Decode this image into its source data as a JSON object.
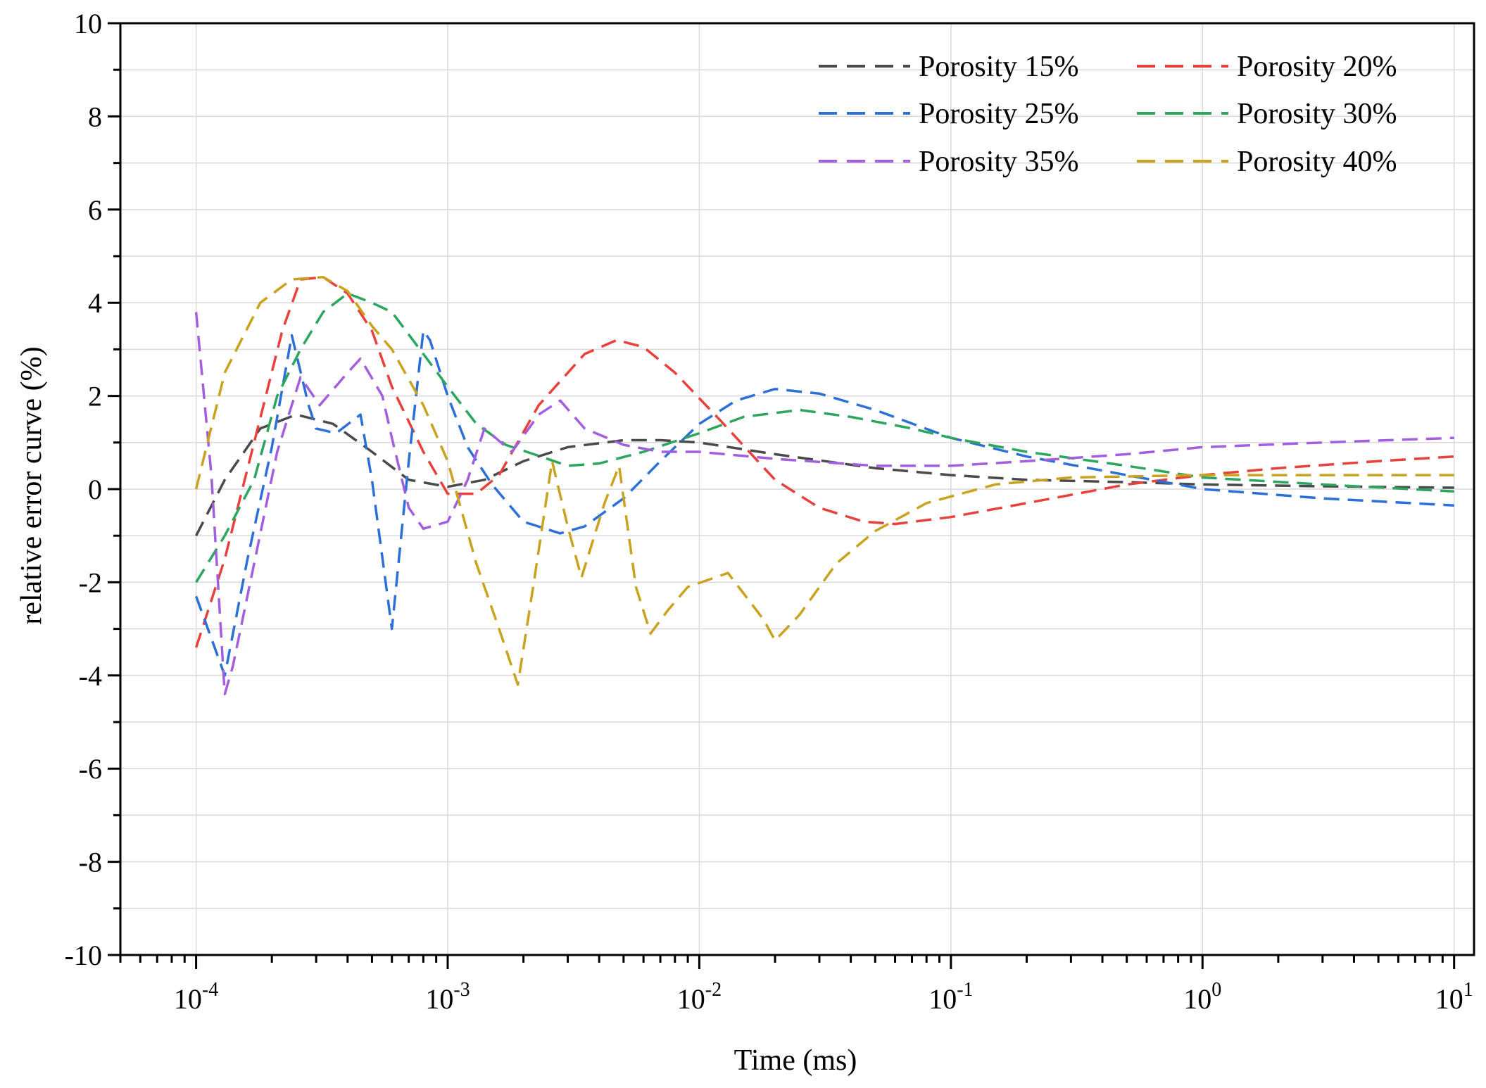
{
  "chart_data": {
    "type": "line",
    "title": "",
    "xlabel": "Time (ms)",
    "ylabel": "relative error curve (%)",
    "xscale": "log",
    "xlim": [
      5e-05,
      12
    ],
    "ylim": [
      -10,
      10
    ],
    "xticks": [
      {
        "value": 0.0001,
        "base": "10",
        "exp": "-4"
      },
      {
        "value": 0.001,
        "base": "10",
        "exp": "-3"
      },
      {
        "value": 0.01,
        "base": "10",
        "exp": "-2"
      },
      {
        "value": 0.1,
        "base": "10",
        "exp": "-1"
      },
      {
        "value": 1,
        "base": "10",
        "exp": "0"
      },
      {
        "value": 10,
        "base": "10",
        "exp": "1"
      }
    ],
    "yticks": [
      {
        "value": -10,
        "label": "-10"
      },
      {
        "value": -8,
        "label": "-8"
      },
      {
        "value": -6,
        "label": "-6"
      },
      {
        "value": -4,
        "label": "-4"
      },
      {
        "value": -2,
        "label": "-2"
      },
      {
        "value": 0,
        "label": "0"
      },
      {
        "value": 2,
        "label": "2"
      },
      {
        "value": 4,
        "label": "4"
      },
      {
        "value": 6,
        "label": "6"
      },
      {
        "value": 8,
        "label": "8"
      },
      {
        "value": 10,
        "label": "10"
      }
    ],
    "grid": true,
    "legend_position": "top-right",
    "series": [
      {
        "name": "Porosity 15%",
        "color": "#4a4a4a",
        "points": [
          [
            0.0001,
            -1.0
          ],
          [
            0.00013,
            0.2
          ],
          [
            0.00018,
            1.3
          ],
          [
            0.00025,
            1.6
          ],
          [
            0.00035,
            1.4
          ],
          [
            0.0005,
            0.8
          ],
          [
            0.0007,
            0.2
          ],
          [
            0.001,
            0.05
          ],
          [
            0.0014,
            0.2
          ],
          [
            0.002,
            0.6
          ],
          [
            0.003,
            0.9
          ],
          [
            0.005,
            1.05
          ],
          [
            0.007,
            1.05
          ],
          [
            0.01,
            1.0
          ],
          [
            0.02,
            0.75
          ],
          [
            0.05,
            0.45
          ],
          [
            0.1,
            0.3
          ],
          [
            0.2,
            0.2
          ],
          [
            0.5,
            0.15
          ],
          [
            1,
            0.1
          ],
          [
            3,
            0.06
          ],
          [
            10,
            0.03
          ]
        ]
      },
      {
        "name": "Porosity 20%",
        "color": "#e8413c",
        "points": [
          [
            0.0001,
            -3.4
          ],
          [
            0.00013,
            -1.5
          ],
          [
            0.00017,
            1.0
          ],
          [
            0.00022,
            3.4
          ],
          [
            0.00026,
            4.5
          ],
          [
            0.00032,
            4.55
          ],
          [
            0.0004,
            4.2
          ],
          [
            0.0005,
            3.4
          ],
          [
            0.0006,
            2.2
          ],
          [
            0.0008,
            0.8
          ],
          [
            0.001,
            -0.1
          ],
          [
            0.0013,
            -0.1
          ],
          [
            0.0016,
            0.3
          ],
          [
            0.0023,
            1.8
          ],
          [
            0.0035,
            2.9
          ],
          [
            0.0047,
            3.2
          ],
          [
            0.006,
            3.05
          ],
          [
            0.008,
            2.5
          ],
          [
            0.012,
            1.5
          ],
          [
            0.02,
            0.2
          ],
          [
            0.03,
            -0.4
          ],
          [
            0.045,
            -0.7
          ],
          [
            0.06,
            -0.75
          ],
          [
            0.1,
            -0.6
          ],
          [
            0.2,
            -0.3
          ],
          [
            0.5,
            0.1
          ],
          [
            1,
            0.3
          ],
          [
            2,
            0.45
          ],
          [
            5,
            0.6
          ],
          [
            10,
            0.7
          ]
        ]
      },
      {
        "name": "Porosity 25%",
        "color": "#2b6fd8",
        "points": [
          [
            0.0001,
            -2.3
          ],
          [
            0.00013,
            -4.0
          ],
          [
            0.00016,
            -1.5
          ],
          [
            0.0002,
            0.9
          ],
          [
            0.00024,
            3.3
          ],
          [
            0.00028,
            1.8
          ],
          [
            0.0003,
            1.3
          ],
          [
            0.00036,
            1.2
          ],
          [
            0.00045,
            1.6
          ],
          [
            0.0005,
            0.2
          ],
          [
            0.0006,
            -3.0
          ],
          [
            0.0007,
            0.6
          ],
          [
            0.0008,
            3.4
          ],
          [
            0.00085,
            3.2
          ],
          [
            0.001,
            2.0
          ],
          [
            0.0012,
            0.9
          ],
          [
            0.0015,
            0.1
          ],
          [
            0.002,
            -0.7
          ],
          [
            0.0028,
            -0.95
          ],
          [
            0.0035,
            -0.8
          ],
          [
            0.005,
            -0.2
          ],
          [
            0.007,
            0.6
          ],
          [
            0.01,
            1.4
          ],
          [
            0.014,
            1.9
          ],
          [
            0.02,
            2.15
          ],
          [
            0.03,
            2.05
          ],
          [
            0.05,
            1.7
          ],
          [
            0.1,
            1.1
          ],
          [
            0.2,
            0.7
          ],
          [
            0.5,
            0.3
          ],
          [
            1,
            0.0
          ],
          [
            3,
            -0.2
          ],
          [
            10,
            -0.35
          ]
        ]
      },
      {
        "name": "Porosity 30%",
        "color": "#2ca55e",
        "points": [
          [
            0.0001,
            -2.0
          ],
          [
            0.00013,
            -1.0
          ],
          [
            0.00017,
            0.2
          ],
          [
            0.00021,
            2.0
          ],
          [
            0.00026,
            3.0
          ],
          [
            0.00032,
            3.8
          ],
          [
            0.0004,
            4.2
          ],
          [
            0.0005,
            4.0
          ],
          [
            0.0006,
            3.8
          ],
          [
            0.0008,
            2.9
          ],
          [
            0.001,
            2.2
          ],
          [
            0.0013,
            1.4
          ],
          [
            0.0017,
            0.95
          ],
          [
            0.0022,
            0.75
          ],
          [
            0.003,
            0.5
          ],
          [
            0.004,
            0.55
          ],
          [
            0.006,
            0.8
          ],
          [
            0.01,
            1.2
          ],
          [
            0.015,
            1.55
          ],
          [
            0.025,
            1.7
          ],
          [
            0.04,
            1.55
          ],
          [
            0.07,
            1.3
          ],
          [
            0.1,
            1.1
          ],
          [
            0.2,
            0.8
          ],
          [
            0.5,
            0.5
          ],
          [
            1,
            0.25
          ],
          [
            3,
            0.1
          ],
          [
            10,
            -0.05
          ]
        ]
      },
      {
        "name": "Porosity 35%",
        "color": "#a35ee0",
        "points": [
          [
            0.0001,
            3.8
          ],
          [
            0.000115,
            0.3
          ],
          [
            0.00013,
            -4.4
          ],
          [
            0.00014,
            -3.8
          ],
          [
            0.00017,
            -1.6
          ],
          [
            0.00021,
            0.8
          ],
          [
            0.00026,
            2.4
          ],
          [
            0.00031,
            1.8
          ],
          [
            0.0004,
            2.5
          ],
          [
            0.00045,
            2.8
          ],
          [
            0.00055,
            2.0
          ],
          [
            0.0006,
            1.1
          ],
          [
            0.0007,
            -0.4
          ],
          [
            0.0008,
            -0.85
          ],
          [
            0.001,
            -0.7
          ],
          [
            0.0012,
            0.2
          ],
          [
            0.0014,
            1.3
          ],
          [
            0.0018,
            0.8
          ],
          [
            0.0023,
            1.6
          ],
          [
            0.0028,
            1.9
          ],
          [
            0.0035,
            1.3
          ],
          [
            0.005,
            0.95
          ],
          [
            0.007,
            0.8
          ],
          [
            0.01,
            0.8
          ],
          [
            0.02,
            0.65
          ],
          [
            0.05,
            0.5
          ],
          [
            0.1,
            0.5
          ],
          [
            0.2,
            0.6
          ],
          [
            0.5,
            0.75
          ],
          [
            1,
            0.9
          ],
          [
            3,
            1.0
          ],
          [
            10,
            1.1
          ]
        ]
      },
      {
        "name": "Porosity 40%",
        "color": "#c9a21f",
        "points": [
          [
            0.0001,
            0.0
          ],
          [
            0.00013,
            2.5
          ],
          [
            0.00018,
            4.0
          ],
          [
            0.00024,
            4.5
          ],
          [
            0.00032,
            4.55
          ],
          [
            0.0004,
            4.25
          ],
          [
            0.0005,
            3.5
          ],
          [
            0.0006,
            3.0
          ],
          [
            0.0008,
            1.8
          ],
          [
            0.001,
            0.6
          ],
          [
            0.0013,
            -1.6
          ],
          [
            0.0016,
            -3.0
          ],
          [
            0.0019,
            -4.2
          ],
          [
            0.0022,
            -2.0
          ],
          [
            0.0026,
            0.6
          ],
          [
            0.003,
            -0.8
          ],
          [
            0.0034,
            -1.9
          ],
          [
            0.0042,
            -0.3
          ],
          [
            0.0048,
            0.5
          ],
          [
            0.0056,
            -2.1
          ],
          [
            0.0064,
            -3.1
          ],
          [
            0.0075,
            -2.6
          ],
          [
            0.009,
            -2.1
          ],
          [
            0.013,
            -1.8
          ],
          [
            0.018,
            -2.8
          ],
          [
            0.02,
            -3.25
          ],
          [
            0.025,
            -2.7
          ],
          [
            0.035,
            -1.6
          ],
          [
            0.05,
            -0.9
          ],
          [
            0.08,
            -0.3
          ],
          [
            0.15,
            0.1
          ],
          [
            0.3,
            0.25
          ],
          [
            1,
            0.3
          ],
          [
            10,
            0.3
          ]
        ]
      }
    ]
  }
}
